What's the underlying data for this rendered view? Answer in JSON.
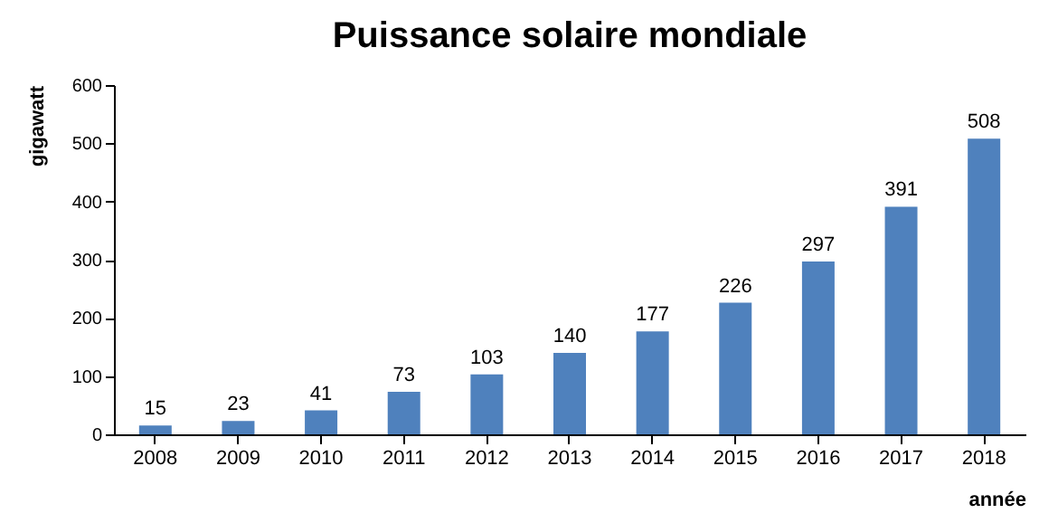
{
  "chart_data": {
    "type": "bar",
    "title": "Puissance solaire mondiale",
    "xlabel": "année",
    "ylabel": "gigawatt",
    "categories": [
      "2008",
      "2009",
      "2010",
      "2011",
      "2012",
      "2013",
      "2014",
      "2015",
      "2016",
      "2017",
      "2018"
    ],
    "values": [
      15,
      23,
      41,
      73,
      103,
      140,
      177,
      226,
      297,
      391,
      508
    ],
    "color": "#4f81bd",
    "ylim": [
      0,
      600
    ],
    "yticks": [
      0,
      100,
      200,
      300,
      400,
      500,
      600
    ],
    "grid": false,
    "data_labels": true
  }
}
